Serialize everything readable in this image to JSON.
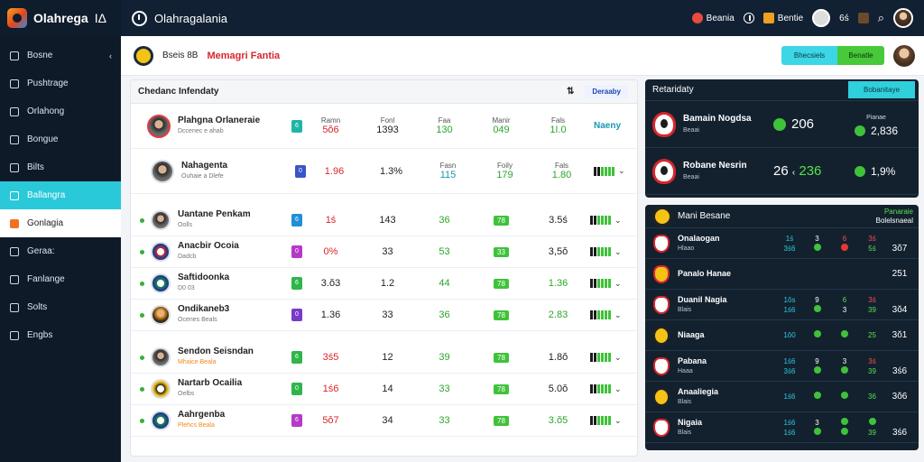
{
  "topbar": {
    "brand": "Olahrega",
    "brand_suffix": "ΙΔ",
    "app_title": "Olahragalania",
    "chip1": "Beania",
    "chip2": "Bentie",
    "chip3": "6ś"
  },
  "sidebar": {
    "items": [
      {
        "label": "Bosne",
        "chev": "‹"
      },
      {
        "label": "Pushtrage"
      },
      {
        "label": "Orlahong"
      },
      {
        "label": "Bongue"
      },
      {
        "label": "Bilts"
      },
      {
        "label": "Ballangra"
      },
      {
        "label": "Gonlagia"
      },
      {
        "label": "Geraa:"
      },
      {
        "label": "Fanlange"
      },
      {
        "label": "Solts"
      },
      {
        "label": "Engbs"
      }
    ]
  },
  "header": {
    "left_text": "Bseis 8B",
    "title": "Memagri Fantia",
    "btn_cyan": "Bhecsiels",
    "btn_green": "Benatle"
  },
  "table": {
    "title": "Chedanc Infendaty",
    "pill": "Deraaby",
    "rows": [
      {
        "name": "Plahgna Orlaneraie",
        "sub": "Dccenec e ahab",
        "tag": "6",
        "c1h": "Ramn",
        "c1": "5ŏ6",
        "c2h": "Fonl",
        "c2": "1393",
        "c3h": "Faa",
        "c3": "130",
        "c4h": "Manir",
        "c4": "049",
        "c5h": "Fals",
        "c5": "1I.0",
        "extra": "Naeny"
      },
      {
        "name": "Nahagenta",
        "sub": "Ouhaie a Dlefe",
        "tag": "0",
        "c1": "1.96",
        "c2": "1.3%",
        "c3h": "Fasn",
        "c3": "115",
        "c4h": "Foily",
        "c4": "179",
        "c5h": "Fals",
        "c5": "1.80"
      },
      {
        "name": "Uantane Penkam",
        "sub": "Oolls",
        "tag": "6",
        "c1": "1ś",
        "c2": "143",
        "c3": "36",
        "c4": "78",
        "c5": "3.5ś"
      },
      {
        "name": "Anacbir Ocoia",
        "sub": "Dadcb",
        "tag": "0",
        "c1": "0%",
        "c2": "33",
        "c3": "53",
        "c4": "33",
        "c5": "3,5ŏ"
      },
      {
        "name": "Saftidoonka",
        "sub": "D0 03",
        "tag": "6",
        "c1": "3.ŏ3",
        "c2": "1.2",
        "c3": "44",
        "c4": "78",
        "c5": "1.36"
      },
      {
        "name": "Ondikaneb3",
        "sub": "Ocenes Beals",
        "tag": "0",
        "c1": "1.36",
        "c2": "33",
        "c3": "36",
        "c4": "78",
        "c5": "2.83"
      },
      {
        "name": "Sendon Seisndan",
        "sub": "Mhaice Beala",
        "tag": "6",
        "c1": "3ś5",
        "c2": "12",
        "c3": "39",
        "c4": "78",
        "c5": "1.8ŏ"
      },
      {
        "name": "Nartarb Ocailia",
        "sub": "Oelbs",
        "tag": "0",
        "c1": "1ś6",
        "c2": "14",
        "c3": "33",
        "c4": "78",
        "c5": "5.0ŏ"
      },
      {
        "name": "Aahrgenba",
        "sub": "Plehcs Beala",
        "tag": "6",
        "c1": "5ŏ7",
        "c2": "34",
        "c3": "33",
        "c4": "78",
        "c5": "3.ŏ5"
      }
    ]
  },
  "match": {
    "title": "Retaridaty",
    "btn": "Bobanitaye",
    "rows": [
      {
        "name": "Bamain Nogdsa",
        "sub": "Beaai",
        "score": "206",
        "oddh": "Pianae",
        "odd": "2,836"
      },
      {
        "name": "Robane Nesrin",
        "sub": "Beaai",
        "score_l": "26",
        "score_r": "236",
        "odd": "1,9%"
      }
    ]
  },
  "standings": {
    "title": "Mani Besane",
    "lab1": "Panaraie",
    "lab2": "Bolelsnaeal",
    "rows": [
      {
        "name": "Onalaogan",
        "sub": "Hlaao",
        "a": "1ś",
        "b": "3",
        "c": "6",
        "d": "3ś",
        "e": "3ś6",
        "f": "6",
        "g": "5ś",
        "h": "3ŏ7"
      },
      {
        "name": "Panalo Hanae",
        "sub": "",
        "a": "",
        "b": "",
        "c": "",
        "d": "",
        "e": "",
        "f": "",
        "g": "",
        "h": "251"
      },
      {
        "name": "Duanil Nagia",
        "sub": "Blais",
        "a": "1ŏs",
        "b": "9",
        "c": "6",
        "d": "3ś",
        "e": "1ś6",
        "f": "3",
        "g": "39",
        "h": "3ŏ4"
      },
      {
        "name": "Niaaga",
        "sub": "",
        "a": "",
        "b": "",
        "c": "",
        "d": "",
        "e": "1ŏ0",
        "f": "",
        "g": "25",
        "h": "3ŏ1"
      },
      {
        "name": "Pabana",
        "sub": "Haaa",
        "a": "1ś6",
        "b": "9",
        "c": "3",
        "d": "3ś",
        "e": "3ś6",
        "f": "",
        "g": "39",
        "h": "3ś6"
      },
      {
        "name": "Anaaliegia",
        "sub": "Blais",
        "a": "",
        "b": "",
        "c": "",
        "d": "",
        "e": "1ś6",
        "f": "",
        "g": "36",
        "h": "3ŏ6"
      },
      {
        "name": "Nigaia",
        "sub": "Blais",
        "a": "1ś6",
        "b": "3",
        "c": "",
        "d": "",
        "e": "1ś6",
        "f": "",
        "g": "39",
        "h": "3ś6"
      }
    ]
  }
}
